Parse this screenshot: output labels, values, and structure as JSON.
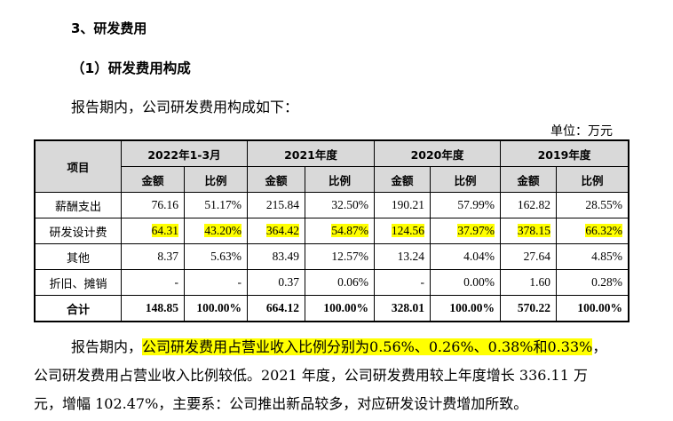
{
  "section_title": "3、研发费用",
  "subsection_title": "（1）研发费用构成",
  "intro": "报告期内，公司研发费用构成如下：",
  "unit": "单位：万元",
  "highlight_color": "#ffff00",
  "table": {
    "item_header": "项目",
    "periods": [
      "2022年1-3月",
      "2021年度",
      "2020年度",
      "2019年度"
    ],
    "sub_headers": [
      "金额",
      "比例"
    ],
    "rows": [
      {
        "label": "薪酬支出",
        "cells": [
          "76.16",
          "51.17%",
          "215.84",
          "32.50%",
          "190.21",
          "57.99%",
          "162.82",
          "28.55%"
        ],
        "highlighted": false
      },
      {
        "label": "研发设计费",
        "cells": [
          "64.31",
          "43.20%",
          "364.42",
          "54.87%",
          "124.56",
          "37.97%",
          "378.15",
          "66.32%"
        ],
        "highlighted": true
      },
      {
        "label": "其他",
        "cells": [
          "8.37",
          "5.63%",
          "83.49",
          "12.57%",
          "13.24",
          "4.04%",
          "27.64",
          "4.85%"
        ],
        "highlighted": false
      },
      {
        "label": "折旧、摊销",
        "cells": [
          "-",
          "-",
          "0.37",
          "0.06%",
          "-",
          "0.00%",
          "1.60",
          "0.28%"
        ],
        "highlighted": false
      },
      {
        "label": "合计",
        "cells": [
          "148.85",
          "100.00%",
          "664.12",
          "100.00%",
          "328.01",
          "100.00%",
          "570.22",
          "100.00%"
        ],
        "highlighted": false,
        "total": true
      }
    ]
  },
  "paragraph": {
    "l1_pre": "报告期内，",
    "l1_hl": "公司研发费用占营业收入比例分别为0.56%、0.26%、0.38%和0.33%",
    "l1_post": "，",
    "l2": "公司研发费用占营业收入比例较低。2021 年度，公司研发费用较上年度增长 336.11 万",
    "l3": "元，增幅 102.47%，主要系：公司推出新品较多，对应研发设计费增加所致。"
  }
}
